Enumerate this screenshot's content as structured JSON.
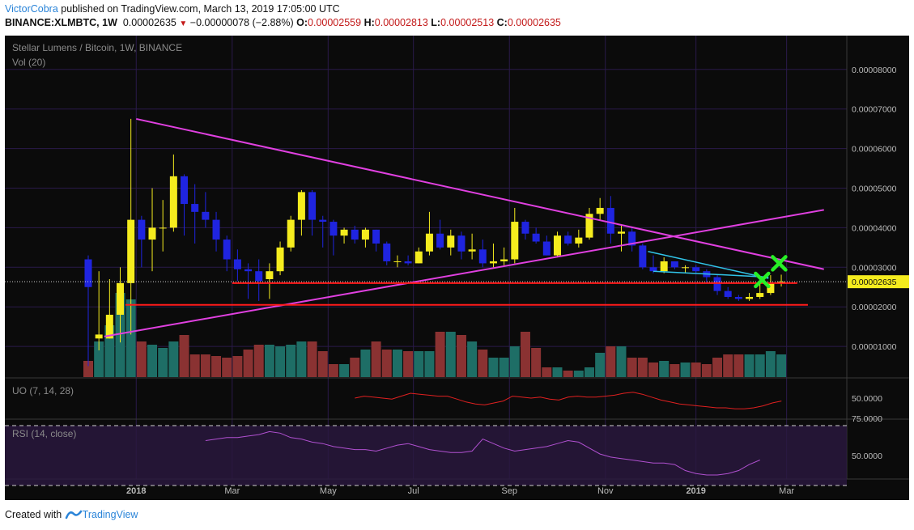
{
  "header": {
    "author": "VictorCobra",
    "published_text": " published on TradingView.com, March 13, 2019 17:05:00 UTC",
    "symbol": "BINANCE:XLMBTC, 1W",
    "last": "0.00002635",
    "change_arrow": "▼",
    "change": "−0.00000078 (−2.88%)",
    "o_label": "O:",
    "o_value": "0.00002559",
    "h_label": "H:",
    "h_value": "0.00002813",
    "l_label": "L:",
    "l_value": "0.00002513",
    "c_label": "C:",
    "c_value": "0.00002635"
  },
  "footer": {
    "created_with": "Created with",
    "brand": "TradingView"
  },
  "colors": {
    "background": "#0b0b0b",
    "grid": "#2a1a4a",
    "up": "#f5ec1e",
    "down": "#1f24e0",
    "vol_up": "#1e6e66",
    "vol_down": "#8a3232",
    "trendline": "#e040e0",
    "support": "#ff1a1a",
    "cyan": "#31c4e8",
    "cross": "#27f026",
    "uo": "#e02020",
    "rsi": "#b050d0",
    "rsi_band": "#2a1840",
    "price_label_bg": "#f5ec1e"
  },
  "chart_data": {
    "type": "candlestick",
    "title": "Stellar Lumens / Bitcoin, 1W, BINANCE",
    "volume_label": "Vol (20)",
    "y_range": [
      0,
      9e-05
    ],
    "y_ticks": [
      "0.00001000",
      "0.00002000",
      "0.00003000",
      "0.00004000",
      "0.00005000",
      "0.00006000",
      "0.00007000",
      "0.00008000"
    ],
    "last_price_label": "0.00002635",
    "last_price": 2.635e-05,
    "x_labels": [
      {
        "label": "2018",
        "index": 4.5,
        "bold": true
      },
      {
        "label": "Mar",
        "index": 13.5
      },
      {
        "label": "May",
        "index": 22.5
      },
      {
        "label": "Jul",
        "index": 30.5
      },
      {
        "label": "Sep",
        "index": 39.5
      },
      {
        "label": "Nov",
        "index": 48.5
      },
      {
        "label": "2019",
        "index": 57,
        "bold": true
      },
      {
        "label": "Mar",
        "index": 65.5
      }
    ],
    "candles": [
      [
        3.2,
        2.5,
        3.3,
        0.5
      ],
      [
        1.2,
        1.3,
        2.9,
        0.9
      ],
      [
        1.2,
        1.8,
        2.7,
        1.2
      ],
      [
        1.8,
        2.6,
        3.0,
        1.1
      ],
      [
        2.6,
        4.2,
        6.75,
        1.3
      ],
      [
        4.2,
        3.7,
        4.3,
        3.0
      ],
      [
        3.7,
        4.0,
        5.0,
        2.9
      ],
      [
        4.0,
        4.0,
        4.7,
        3.4
      ],
      [
        4.0,
        5.3,
        5.85,
        3.9
      ],
      [
        5.3,
        4.6,
        5.35,
        3.8
      ],
      [
        4.6,
        4.4,
        5.1,
        3.6
      ],
      [
        4.4,
        4.2,
        4.9,
        4.0
      ],
      [
        4.2,
        3.7,
        4.4,
        3.4
      ],
      [
        3.7,
        3.2,
        3.8,
        2.9
      ],
      [
        3.2,
        2.95,
        3.45,
        2.65
      ],
      [
        2.95,
        2.9,
        3.1,
        2.2
      ],
      [
        2.9,
        2.65,
        3.2,
        2.15
      ],
      [
        2.7,
        2.9,
        3.1,
        2.2
      ],
      [
        2.9,
        3.5,
        3.65,
        2.8
      ],
      [
        3.5,
        4.2,
        4.3,
        3.4
      ],
      [
        4.2,
        4.9,
        4.95,
        3.8
      ],
      [
        4.9,
        4.2,
        4.95,
        3.8
      ],
      [
        4.2,
        4.15,
        4.3,
        3.5
      ],
      [
        4.15,
        3.8,
        4.2,
        3.3
      ],
      [
        3.8,
        3.95,
        4.0,
        3.6
      ],
      [
        3.95,
        3.7,
        4.05,
        3.6
      ],
      [
        3.7,
        3.95,
        4.0,
        3.5
      ],
      [
        3.95,
        3.6,
        3.95,
        3.4
      ],
      [
        3.6,
        3.15,
        3.65,
        3.05
      ],
      [
        3.15,
        3.15,
        3.3,
        3.0
      ],
      [
        3.15,
        3.1,
        3.3,
        3.05
      ],
      [
        3.1,
        3.4,
        3.5,
        3.1
      ],
      [
        3.4,
        3.85,
        4.4,
        3.3
      ],
      [
        3.85,
        3.5,
        4.2,
        3.45
      ],
      [
        3.5,
        3.8,
        3.95,
        3.3
      ],
      [
        3.8,
        3.4,
        3.9,
        3.2
      ],
      [
        3.4,
        3.45,
        3.85,
        3.2
      ],
      [
        3.45,
        3.1,
        3.7,
        3.0
      ],
      [
        3.1,
        3.15,
        3.6,
        3.0
      ],
      [
        3.15,
        3.2,
        3.5,
        3.05
      ],
      [
        3.2,
        4.15,
        4.5,
        3.1
      ],
      [
        4.15,
        3.85,
        4.2,
        3.7
      ],
      [
        3.85,
        3.65,
        4.0,
        3.6
      ],
      [
        3.65,
        3.3,
        3.8,
        3.3
      ],
      [
        3.3,
        3.8,
        3.9,
        3.25
      ],
      [
        3.8,
        3.6,
        3.9,
        3.55
      ],
      [
        3.6,
        3.75,
        3.95,
        3.5
      ],
      [
        3.75,
        4.35,
        4.5,
        3.7
      ],
      [
        4.35,
        4.5,
        4.75,
        4.2
      ],
      [
        4.5,
        3.85,
        4.8,
        3.6
      ],
      [
        3.85,
        3.9,
        4.05,
        3.4
      ],
      [
        3.9,
        3.55,
        4.0,
        3.4
      ],
      [
        3.55,
        3.0,
        3.6,
        2.95
      ],
      [
        3.0,
        2.9,
        3.3,
        2.85
      ],
      [
        2.9,
        3.15,
        3.25,
        2.85
      ],
      [
        3.15,
        3.0,
        3.15,
        2.95
      ],
      [
        3.0,
        3.0,
        3.05,
        2.85
      ],
      [
        3.0,
        2.9,
        3.05,
        2.85
      ],
      [
        2.9,
        2.75,
        2.95,
        2.6
      ],
      [
        2.75,
        2.4,
        2.8,
        2.3
      ],
      [
        2.4,
        2.25,
        2.5,
        2.2
      ],
      [
        2.25,
        2.2,
        2.3,
        2.15
      ],
      [
        2.2,
        2.25,
        2.35,
        2.15
      ],
      [
        2.25,
        2.35,
        2.6,
        2.2
      ],
      [
        2.35,
        2.6,
        2.8,
        2.3
      ],
      [
        2.6,
        2.635,
        2.813,
        2.513
      ]
    ],
    "volume": [
      0.5,
      1.1,
      1.6,
      2.6,
      2.4,
      1.1,
      1.0,
      0.9,
      1.1,
      1.3,
      0.7,
      0.7,
      0.65,
      0.6,
      0.65,
      0.85,
      1.0,
      1.0,
      0.95,
      1.0,
      1.1,
      1.1,
      0.8,
      0.4,
      0.4,
      0.6,
      0.85,
      1.1,
      0.85,
      0.85,
      0.8,
      0.8,
      0.8,
      1.4,
      1.4,
      1.3,
      1.1,
      0.85,
      0.6,
      0.6,
      0.95,
      1.4,
      0.9,
      0.3,
      0.3,
      0.2,
      0.2,
      0.3,
      0.75,
      0.95,
      0.95,
      0.6,
      0.6,
      0.45,
      0.5,
      0.4,
      0.45,
      0.45,
      0.4,
      0.6,
      0.7,
      0.7,
      0.7,
      0.7,
      0.8,
      0.7
    ],
    "trendlines": [
      {
        "name": "upper-resistance",
        "color": "trendline",
        "from": [
          4.5,
          6.75
        ],
        "to": [
          69,
          2.95
        ]
      },
      {
        "name": "rising-support",
        "color": "trendline",
        "from": [
          1.5,
          1.25
        ],
        "to": [
          69,
          4.45
        ]
      },
      {
        "name": "support-upper",
        "color": "support",
        "from": [
          13.5,
          2.6
        ],
        "to": [
          66.5,
          2.6
        ]
      },
      {
        "name": "support-lower",
        "color": "support",
        "from": [
          3.5,
          2.05
        ],
        "to": [
          67.5,
          2.05
        ]
      },
      {
        "name": "cyan-upper",
        "color": "cyan",
        "from": [
          52.5,
          3.4
        ],
        "to": [
          63.8,
          2.72
        ]
      },
      {
        "name": "cyan-lower",
        "color": "cyan",
        "from": [
          53,
          2.9
        ],
        "to": [
          63.8,
          2.75
        ]
      }
    ],
    "crosses": [
      [
        63.2,
        2.68
      ],
      [
        64.8,
        3.1
      ]
    ],
    "uo": {
      "label": "UO (7, 14, 28)",
      "tick": "50.0000",
      "start_index": 25,
      "values": [
        50,
        52,
        51,
        50,
        49,
        52,
        55,
        54,
        53,
        52,
        52,
        49,
        46,
        44,
        43,
        45,
        47,
        52,
        51,
        50,
        51,
        49,
        48,
        51,
        52,
        51,
        51,
        52,
        53,
        55,
        56,
        54,
        51,
        48,
        46,
        44,
        43,
        42,
        41,
        40,
        40,
        39,
        39,
        40,
        42,
        45,
        47
      ]
    },
    "rsi": {
      "label": "RSI (14, close)",
      "ticks": [
        "75.0000",
        "50.0000"
      ],
      "upper_band": 70,
      "lower_band": 30,
      "start_index": 11,
      "values": [
        60,
        61,
        62,
        62,
        63,
        64,
        66,
        65,
        62,
        61,
        59,
        58,
        56,
        55,
        54,
        54,
        53,
        55,
        57,
        58,
        56,
        54,
        53,
        52,
        52,
        53,
        61,
        58,
        55,
        53,
        54,
        55,
        56,
        58,
        60,
        59,
        55,
        51,
        49,
        48,
        47,
        46,
        45,
        45,
        44,
        40,
        38,
        37,
        37,
        38,
        40,
        44,
        47
      ]
    }
  }
}
